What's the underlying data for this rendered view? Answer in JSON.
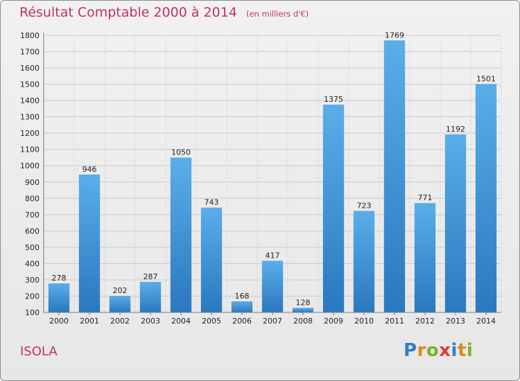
{
  "chart_data": {
    "type": "bar",
    "title": "Résultat Comptable 2000 à 2014",
    "subtitle": "(en milliers d'€)",
    "categories": [
      "2000",
      "2001",
      "2002",
      "2003",
      "2004",
      "2005",
      "2006",
      "2007",
      "2008",
      "2009",
      "2010",
      "2011",
      "2012",
      "2013",
      "2014"
    ],
    "values": [
      278,
      946,
      202,
      287,
      1050,
      743,
      168,
      417,
      128,
      1375,
      723,
      1769,
      771,
      1192,
      1501
    ],
    "yticks": [
      100,
      200,
      300,
      400,
      500,
      600,
      700,
      800,
      900,
      1000,
      1100,
      1200,
      1300,
      1400,
      1500,
      1600,
      1700,
      1800
    ],
    "ylim": [
      100,
      1800
    ],
    "xlabel": "",
    "ylabel": "",
    "grid": true,
    "bar_color": "#3d8fd6"
  },
  "footer": {
    "commune": "ISOLA",
    "brand": {
      "letters": [
        {
          "ch": "P",
          "color": "#2f7fc9"
        },
        {
          "ch": "r",
          "color": "#e2861f"
        },
        {
          "ch": "o",
          "color": "#7cb12b"
        },
        {
          "ch": "x",
          "color": "#d6403a"
        },
        {
          "ch": "i",
          "color": "#2f7fc9"
        },
        {
          "ch": "t",
          "color": "#e2861f"
        },
        {
          "ch": "i",
          "color": "#7cb12b"
        }
      ]
    }
  }
}
